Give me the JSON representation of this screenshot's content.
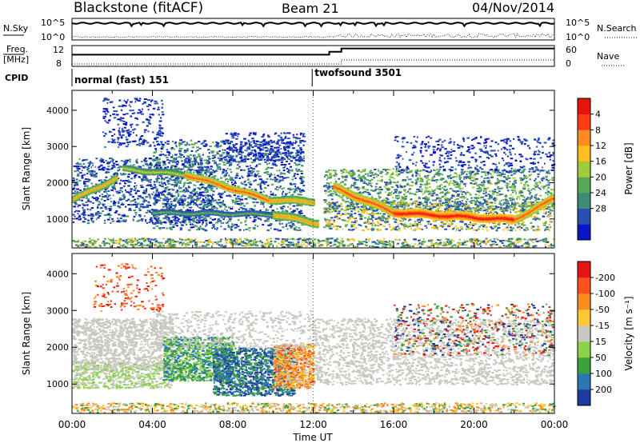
{
  "header": {
    "station": "Blackstone (fitACF)",
    "beam": "Beam 21",
    "date": "04/Nov/2014"
  },
  "status_panels": {
    "nsky_label": "N.Sky",
    "nsearch_label": "N.Search",
    "freq_label": "Freq.",
    "freq_unit": "[MHz]",
    "nave_label": "Nave",
    "cpid_label": "CPID",
    "log_top": "10^5",
    "log_bottom": "10^0",
    "freq_ticks": [
      "12",
      "8"
    ],
    "nave_ticks": [
      "60",
      "0"
    ],
    "cpid_segments": [
      {
        "name": "normal (fast) 151",
        "start_hour": 0
      },
      {
        "name": "twofsound 3501",
        "start_hour": 11.95
      }
    ],
    "freq_mhz": [
      {
        "hour": 0,
        "value": 10.3
      },
      {
        "hour": 12.8,
        "value": 10.3
      },
      {
        "hour": 12.8,
        "value": 11.0
      },
      {
        "hour": 13.4,
        "value": 11.0
      },
      {
        "hour": 13.4,
        "value": 11.8
      },
      {
        "hour": 24,
        "value": 11.8
      }
    ]
  },
  "chart_data": [
    {
      "type": "heatmap",
      "parameter": "power",
      "ylabel": "Slant Range [km]",
      "yticks": [
        "1000",
        "2000",
        "3000",
        "4000"
      ],
      "ylim": [
        200,
        4550
      ],
      "xlim": [
        0,
        24
      ],
      "colorbar": {
        "label": "Power [dB]",
        "ticks": [
          "4",
          "8",
          "12",
          "16",
          "20",
          "24",
          "28"
        ],
        "colors": [
          "#0a14c8",
          "#2850b4",
          "#3c8c78",
          "#56a856",
          "#a0cc3c",
          "#ffbe1e",
          "#ff8c1e",
          "#ff3c14",
          "#e6140a"
        ]
      },
      "bands": [
        {
          "h0": 0.0,
          "r0": 1550,
          "h1": 2.2,
          "r1": 2150,
          "w": 130,
          "lvl": 6
        },
        {
          "h0": 2.5,
          "r0": 2400,
          "h1": 5.6,
          "r1": 2250,
          "w": 110,
          "lvl": 5
        },
        {
          "h0": 5.6,
          "r0": 2250,
          "h1": 9.8,
          "r1": 1550,
          "w": 130,
          "lvl": 7
        },
        {
          "h0": 9.8,
          "r0": 1550,
          "h1": 12.0,
          "r1": 1500,
          "w": 150,
          "lvl": 6
        },
        {
          "h0": 4.0,
          "r0": 1200,
          "h1": 10.0,
          "r1": 1150,
          "w": 80,
          "lvl": 4
        },
        {
          "h0": 10.0,
          "r0": 1150,
          "h1": 12.2,
          "r1": 900,
          "w": 160,
          "lvl": 6
        },
        {
          "h0": 13.0,
          "r0": 1900,
          "h1": 16.0,
          "r1": 1200,
          "w": 180,
          "lvl": 7
        },
        {
          "h0": 16.0,
          "r0": 1200,
          "h1": 22.0,
          "r1": 1000,
          "w": 170,
          "lvl": 8
        },
        {
          "h0": 22.0,
          "r0": 1000,
          "h1": 24.0,
          "r1": 1600,
          "w": 160,
          "lvl": 7
        }
      ],
      "clouds": [
        {
          "h0": 0.0,
          "h1": 7.0,
          "r0": 900,
          "r1": 2700,
          "lvl": [
            0,
            1,
            2
          ],
          "density": 260
        },
        {
          "h0": 1.5,
          "h1": 4.5,
          "r0": 3000,
          "r1": 4350,
          "lvl": [
            0,
            1
          ],
          "density": 60
        },
        {
          "h0": 4.0,
          "h1": 11.5,
          "r0": 700,
          "r1": 3200,
          "lvl": [
            0,
            1,
            2,
            3
          ],
          "density": 360
        },
        {
          "h0": 7.5,
          "h1": 11.5,
          "r0": 2600,
          "r1": 3400,
          "lvl": [
            0,
            1
          ],
          "density": 70
        },
        {
          "h0": 12.5,
          "h1": 24.0,
          "r0": 1200,
          "r1": 2400,
          "lvl": [
            1,
            2,
            3,
            4
          ],
          "density": 360
        },
        {
          "h0": 12.5,
          "h1": 23.8,
          "r0": 700,
          "r1": 1500,
          "lvl": [
            1,
            3,
            5
          ],
          "density": 220
        },
        {
          "h0": 16.0,
          "h1": 24.0,
          "r0": 2300,
          "r1": 3300,
          "lvl": [
            0,
            1
          ],
          "density": 90
        },
        {
          "h0": 0.0,
          "h1": 24.0,
          "r0": 200,
          "r1": 480,
          "lvl": [
            1,
            2,
            3,
            4,
            5
          ],
          "density": 260
        }
      ]
    },
    {
      "type": "heatmap",
      "parameter": "velocity",
      "ylabel": "Slant Range [km]",
      "yticks": [
        "1000",
        "2000",
        "3000",
        "4000"
      ],
      "ylim": [
        200,
        4550
      ],
      "xlim": [
        0,
        24
      ],
      "xticks": [
        "00:00",
        "04:00",
        "08:00",
        "12:00",
        "16:00",
        "20:00",
        "00:00"
      ],
      "xlabel": "Time UT",
      "colorbar": {
        "label": "Velocity [m s⁻¹]",
        "ticks": [
          "200",
          "100",
          "50",
          "15",
          "-15",
          "-50",
          "-100",
          "-200"
        ],
        "colors": [
          "#1e3ca0",
          "#2878b4",
          "#3ca03c",
          "#8cd24b",
          "#c8c8c0",
          "#ffc832",
          "#ff8c1e",
          "#ff501e",
          "#e61414"
        ]
      },
      "clouds": [
        {
          "h0": 0.0,
          "h1": 5.0,
          "r0": 1400,
          "r1": 2800,
          "lvl": [
            4
          ],
          "density": 320
        },
        {
          "h0": 0.0,
          "h1": 5.0,
          "r0": 900,
          "r1": 1600,
          "lvl": [
            4,
            3
          ],
          "density": 150
        },
        {
          "h0": 1.0,
          "h1": 4.5,
          "r0": 3000,
          "r1": 4300,
          "lvl": [
            7,
            8,
            6
          ],
          "density": 40
        },
        {
          "h0": 4.5,
          "h1": 8.0,
          "r0": 1100,
          "r1": 2300,
          "lvl": [
            2,
            3,
            1
          ],
          "density": 260
        },
        {
          "h0": 7.0,
          "h1": 11.0,
          "r0": 700,
          "r1": 2000,
          "lvl": [
            0,
            1,
            2
          ],
          "density": 320
        },
        {
          "h0": 10.0,
          "h1": 12.0,
          "r0": 900,
          "r1": 2100,
          "lvl": [
            6,
            5,
            7,
            4
          ],
          "density": 200
        },
        {
          "h0": 4.0,
          "h1": 12.0,
          "r0": 2000,
          "r1": 3000,
          "lvl": [
            4
          ],
          "density": 130
        },
        {
          "h0": 12.0,
          "h1": 24.0,
          "r0": 1000,
          "r1": 2800,
          "lvl": [
            4
          ],
          "density": 560
        },
        {
          "h0": 16.0,
          "h1": 24.0,
          "r0": 1800,
          "r1": 3200,
          "lvl": [
            0,
            8,
            6,
            2
          ],
          "density": 140
        },
        {
          "h0": 0.0,
          "h1": 24.0,
          "r0": 200,
          "r1": 500,
          "lvl": [
            5,
            6,
            2,
            4
          ],
          "density": 260
        }
      ],
      "bands": []
    }
  ]
}
